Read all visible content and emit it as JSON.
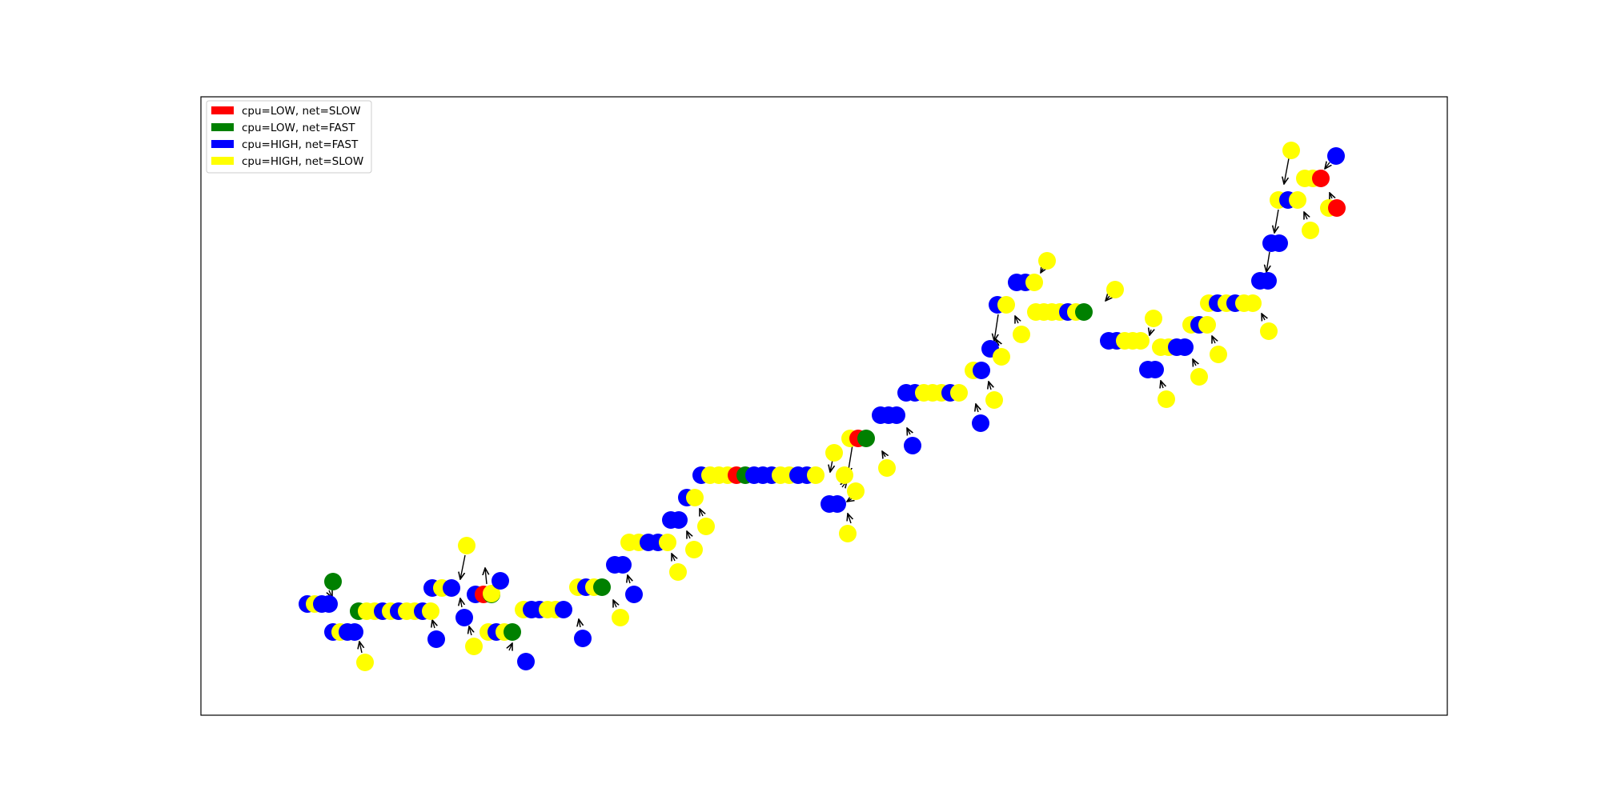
{
  "colors": {
    "low_slow": "#ff0000",
    "low_fast": "#008000",
    "high_fast": "#0000ff",
    "high_slow": "#ffff00",
    "edge": "#000000"
  },
  "legend": {
    "placement": "upper-left",
    "entries": [
      {
        "key": "low_slow",
        "label": "cpu=LOW, net=SLOW"
      },
      {
        "key": "low_fast",
        "label": "cpu=LOW, net=FAST"
      },
      {
        "key": "high_fast",
        "label": "cpu=HIGH, net=FAST"
      },
      {
        "key": "high_slow",
        "label": "cpu=HIGH, net=SLOW"
      }
    ]
  }
}
